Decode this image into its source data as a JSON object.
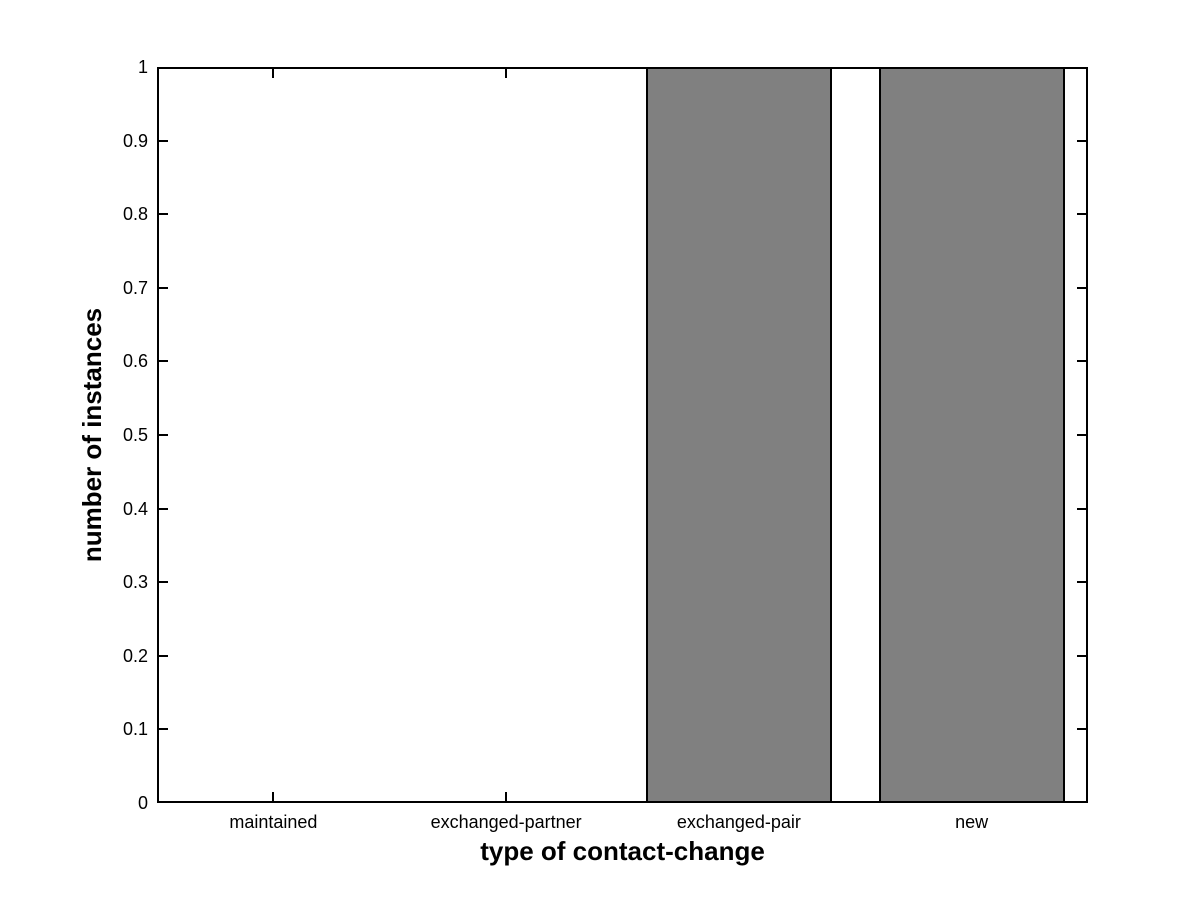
{
  "chart_data": {
    "type": "bar",
    "title": "",
    "categories": [
      "maintained",
      "exchanged-partner",
      "exchanged-pair",
      "new"
    ],
    "values": [
      0,
      0,
      1,
      1
    ],
    "xlabel": "type of contact-change",
    "ylabel": "number of instances",
    "ylim": [
      0,
      1
    ],
    "yticks": [
      0,
      0.1,
      0.2,
      0.3,
      0.4,
      0.5,
      0.6,
      0.7,
      0.8,
      0.9,
      1
    ],
    "ytick_labels": [
      "0",
      "0.1",
      "0.2",
      "0.3",
      "0.4",
      "0.5",
      "0.6",
      "0.7",
      "0.8",
      "0.9",
      "1"
    ],
    "bar_color": "#808080",
    "bar_edge_color": "#000000",
    "axis_color": "#000000",
    "background_color": "#ffffff",
    "bar_width_fraction": 0.8,
    "grid": "off",
    "legend": "none",
    "box": "on",
    "tick_direction": "in"
  }
}
